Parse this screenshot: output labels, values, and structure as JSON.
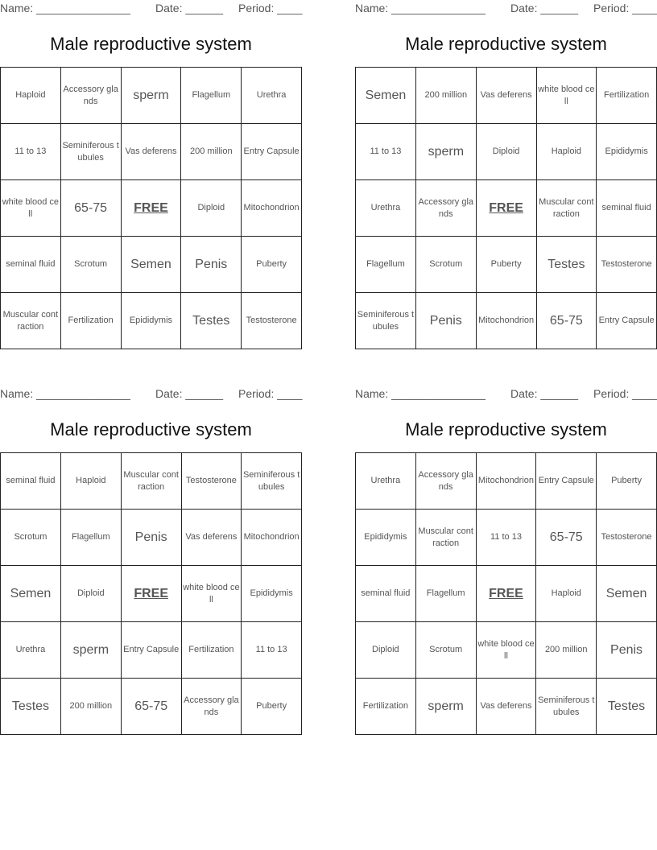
{
  "header": {
    "name_label": "Name: _______________",
    "date_label": "Date: ______",
    "period_label": "Period: ____"
  },
  "title": "Male reproductive system",
  "cards": [
    {
      "rows": [
        [
          "Haploid",
          "Accessory glands",
          "sperm",
          "Flagellum",
          "Urethra"
        ],
        [
          "11 to 13",
          "Seminiferous tubules",
          "Vas deferens",
          "200 million",
          "Entry Capsule"
        ],
        [
          "white blood cell",
          "65-75",
          "FREE",
          "Diploid",
          "Mitochondrion"
        ],
        [
          "seminal fluid",
          "Scrotum",
          "Semen",
          "Penis",
          "Puberty"
        ],
        [
          "Muscular contraction",
          "Fertilization",
          "Epididymis",
          "Testes",
          "Testosterone"
        ]
      ]
    },
    {
      "rows": [
        [
          "Semen",
          "200 million",
          "Vas deferens",
          "white blood cell",
          "Fertilization"
        ],
        [
          "11 to 13",
          "sperm",
          "Diploid",
          "Haploid",
          "Epididymis"
        ],
        [
          "Urethra",
          "Accessory glands",
          "FREE",
          "Muscular contraction",
          "seminal fluid"
        ],
        [
          "Flagellum",
          "Scrotum",
          "Puberty",
          "Testes",
          "Testosterone"
        ],
        [
          "Seminiferous tubules",
          "Penis",
          "Mitochondrion",
          "65-75",
          "Entry Capsule"
        ]
      ]
    },
    {
      "rows": [
        [
          "seminal fluid",
          "Haploid",
          "Muscular contraction",
          "Testosterone",
          "Seminiferous tubules"
        ],
        [
          "Scrotum",
          "Flagellum",
          "Penis",
          "Vas deferens",
          "Mitochondrion"
        ],
        [
          "Semen",
          "Diploid",
          "FREE",
          "white blood cell",
          "Epididymis"
        ],
        [
          "Urethra",
          "sperm",
          "Entry Capsule",
          "Fertilization",
          "11 to 13"
        ],
        [
          "Testes",
          "200 million",
          "65-75",
          "Accessory glands",
          "Puberty"
        ]
      ]
    },
    {
      "rows": [
        [
          "Urethra",
          "Accessory glands",
          "Mitochondrion",
          "Entry Capsule",
          "Puberty"
        ],
        [
          "Epididymis",
          "Muscular contraction",
          "11 to 13",
          "65-75",
          "Testosterone"
        ],
        [
          "seminal fluid",
          "Flagellum",
          "FREE",
          "Haploid",
          "Semen"
        ],
        [
          "Diploid",
          "Scrotum",
          "white blood cell",
          "200 million",
          "Penis"
        ],
        [
          "Fertilization",
          "sperm",
          "Vas deferens",
          "Seminiferous tubules",
          "Testes"
        ]
      ]
    }
  ]
}
